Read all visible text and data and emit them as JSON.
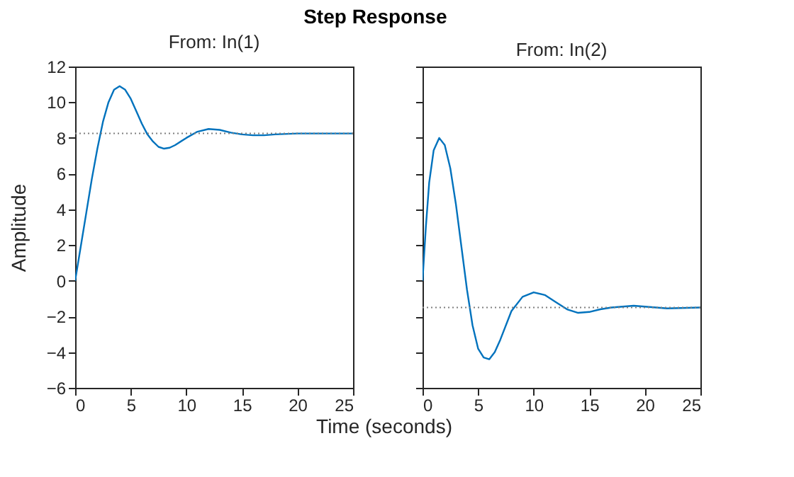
{
  "chart_data": [
    {
      "type": "line",
      "title": "Step Response",
      "subtitle": "From: In(1)",
      "xlabel": "Time (seconds)",
      "ylabel": "Amplitude",
      "marker": "none",
      "line_style": "solid",
      "grid": false,
      "xlim": [
        0,
        25
      ],
      "xticks": [
        0,
        5,
        10,
        15,
        20,
        25
      ],
      "ylim": [
        -6,
        12
      ],
      "yticks": [
        -6,
        -4,
        -2,
        0,
        2,
        4,
        6,
        8,
        10,
        12
      ],
      "series": [
        {
          "color": "#0072bd",
          "x": [
            0,
            0.5,
            1,
            1.5,
            2,
            2.5,
            3,
            3.5,
            4,
            4.5,
            5,
            5.5,
            6,
            6.5,
            7,
            7.5,
            8,
            8.5,
            9,
            10,
            11,
            12,
            13,
            14,
            15,
            16,
            17,
            18,
            20,
            22,
            25
          ],
          "values": [
            0,
            1.9,
            3.8,
            5.7,
            7.4,
            8.9,
            10,
            10.7,
            10.9,
            10.7,
            10.2,
            9.5,
            8.8,
            8.2,
            7.8,
            7.5,
            7.4,
            7.45,
            7.6,
            8.0,
            8.35,
            8.5,
            8.45,
            8.3,
            8.2,
            8.15,
            8.15,
            8.2,
            8.25,
            8.25,
            8.25
          ]
        }
      ],
      "ref_lines": [
        {
          "axis": "y",
          "value": 8.25,
          "color": "#808080",
          "line_style": "dotted"
        }
      ]
    },
    {
      "type": "line",
      "subtitle": "From: In(2)",
      "marker": "none",
      "line_style": "solid",
      "grid": false,
      "tick_labels": "x",
      "xlim": [
        0,
        25
      ],
      "xticks": [
        0,
        5,
        10,
        15,
        20,
        25
      ],
      "ylim": [
        -6,
        12
      ],
      "yticks": [
        -6,
        -4,
        -2,
        0,
        2,
        4,
        6,
        8,
        10,
        12
      ],
      "series": [
        {
          "color": "#0072bd",
          "x": [
            0,
            0.3,
            0.6,
            1,
            1.5,
            2,
            2.5,
            3,
            3.5,
            4,
            4.5,
            5,
            5.5,
            6,
            6.5,
            7,
            8,
            9,
            10,
            11,
            12,
            13,
            14,
            15,
            16,
            17,
            18,
            19,
            20,
            22,
            25
          ],
          "values": [
            0,
            3,
            5.5,
            7.3,
            8.0,
            7.6,
            6.3,
            4.3,
            1.9,
            -0.5,
            -2.5,
            -3.8,
            -4.3,
            -4.4,
            -4.0,
            -3.3,
            -1.7,
            -0.9,
            -0.65,
            -0.8,
            -1.2,
            -1.6,
            -1.8,
            -1.75,
            -1.6,
            -1.5,
            -1.45,
            -1.4,
            -1.45,
            -1.55,
            -1.5
          ]
        }
      ],
      "ref_lines": [
        {
          "axis": "y",
          "value": -1.5,
          "color": "#808080",
          "line_style": "dotted"
        }
      ]
    }
  ]
}
